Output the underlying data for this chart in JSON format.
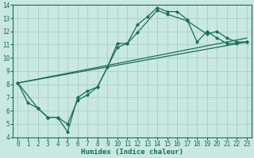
{
  "xlabel": "Humidex (Indice chaleur)",
  "bg_color": "#c8e8e0",
  "grid_color": "#a8d0c8",
  "line_color": "#1a6b5a",
  "xlim": [
    -0.5,
    23.5
  ],
  "ylim": [
    4,
    14
  ],
  "xticks": [
    0,
    1,
    2,
    3,
    4,
    5,
    6,
    7,
    8,
    9,
    10,
    11,
    12,
    13,
    14,
    15,
    16,
    17,
    18,
    19,
    20,
    21,
    22,
    23
  ],
  "yticks": [
    4,
    5,
    6,
    7,
    8,
    9,
    10,
    11,
    12,
    13,
    14
  ],
  "line1_x": [
    0,
    1,
    2,
    3,
    4,
    5,
    6,
    7,
    8,
    9,
    10,
    11,
    12,
    13,
    14,
    15,
    16,
    17,
    18,
    19,
    20,
    21,
    22,
    23
  ],
  "line1_y": [
    8.1,
    6.6,
    6.2,
    5.5,
    5.5,
    4.4,
    7.0,
    7.5,
    7.8,
    9.3,
    11.1,
    11.1,
    12.5,
    13.1,
    13.8,
    13.5,
    13.5,
    12.9,
    11.2,
    12.0,
    11.5,
    11.1,
    11.1,
    11.2
  ],
  "line2_x": [
    0,
    2,
    3,
    4,
    5,
    6,
    7,
    8,
    10,
    11,
    12,
    14,
    15,
    17,
    19,
    20,
    21,
    22,
    23
  ],
  "line2_y": [
    8.1,
    6.2,
    5.5,
    5.5,
    5.0,
    6.8,
    7.2,
    7.8,
    10.8,
    11.1,
    11.9,
    13.6,
    13.3,
    12.8,
    11.8,
    12.0,
    11.5,
    11.2,
    11.2
  ],
  "line3_x": [
    0,
    23
  ],
  "line3_y": [
    8.1,
    11.2
  ],
  "line4_x": [
    0,
    23
  ],
  "line4_y": [
    8.1,
    11.5
  ],
  "marker_size": 2.5,
  "line_width": 0.9,
  "tick_fontsize": 5.5,
  "xlabel_fontsize": 6.5
}
